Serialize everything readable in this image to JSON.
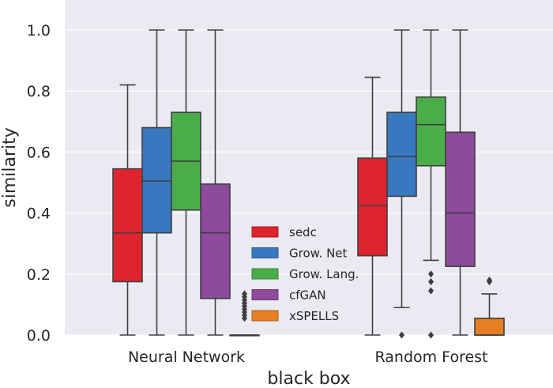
{
  "chart_data": {
    "type": "boxplot",
    "xlabel": "black box",
    "ylabel": "similarity",
    "ylim": [
      0.0,
      1.0
    ],
    "yticks": [
      "0.0",
      "0.2",
      "0.4",
      "0.6",
      "0.8",
      "1.0"
    ],
    "grid": true,
    "legend_position": "center",
    "categories": [
      "Neural Network",
      "Random Forest"
    ],
    "series": [
      {
        "name": "sedc",
        "color": "#e0242f",
        "boxes": [
          {
            "whisker_low": 0.0,
            "q1": 0.175,
            "median": 0.335,
            "q3": 0.545,
            "whisker_high": 0.82,
            "outliers": []
          },
          {
            "whisker_low": 0.0,
            "q1": 0.26,
            "median": 0.425,
            "q3": 0.58,
            "whisker_high": 0.845,
            "outliers": []
          }
        ]
      },
      {
        "name": "Grow. Net",
        "color": "#3778bf",
        "boxes": [
          {
            "whisker_low": 0.0,
            "q1": 0.335,
            "median": 0.505,
            "q3": 0.68,
            "whisker_high": 1.0,
            "outliers": []
          },
          {
            "whisker_low": 0.09,
            "q1": 0.455,
            "median": 0.585,
            "q3": 0.73,
            "whisker_high": 1.0,
            "outliers": [
              0.0
            ]
          }
        ]
      },
      {
        "name": "Grow. Lang.",
        "color": "#4bad4a",
        "boxes": [
          {
            "whisker_low": 0.0,
            "q1": 0.41,
            "median": 0.57,
            "q3": 0.73,
            "whisker_high": 1.0,
            "outliers": []
          },
          {
            "whisker_low": 0.245,
            "q1": 0.555,
            "median": 0.69,
            "q3": 0.78,
            "whisker_high": 1.0,
            "outliers": [
              0.2,
              0.175,
              0.145,
              0.0
            ]
          }
        ]
      },
      {
        "name": "cfGAN",
        "color": "#8e4a9c",
        "boxes": [
          {
            "whisker_low": 0.0,
            "q1": 0.12,
            "median": 0.335,
            "q3": 0.495,
            "whisker_high": 1.0,
            "outliers": []
          },
          {
            "whisker_low": 0.0,
            "q1": 0.225,
            "median": 0.4,
            "q3": 0.665,
            "whisker_high": 1.0,
            "outliers": []
          }
        ]
      },
      {
        "name": "xSPELLS",
        "color": "#e67e22",
        "boxes": [
          {
            "whisker_low": 0.0,
            "q1": 0.0,
            "median": 0.0,
            "q3": 0.0,
            "whisker_high": 0.0,
            "outliers": [
              0.135,
              0.125,
              0.115,
              0.105,
              0.095,
              0.085,
              0.075,
              0.065,
              0.055
            ]
          },
          {
            "whisker_low": 0.0,
            "q1": 0.0,
            "median": 0.0,
            "q3": 0.055,
            "whisker_high": 0.135,
            "outliers": [
              0.18,
              0.175
            ]
          }
        ]
      }
    ]
  }
}
